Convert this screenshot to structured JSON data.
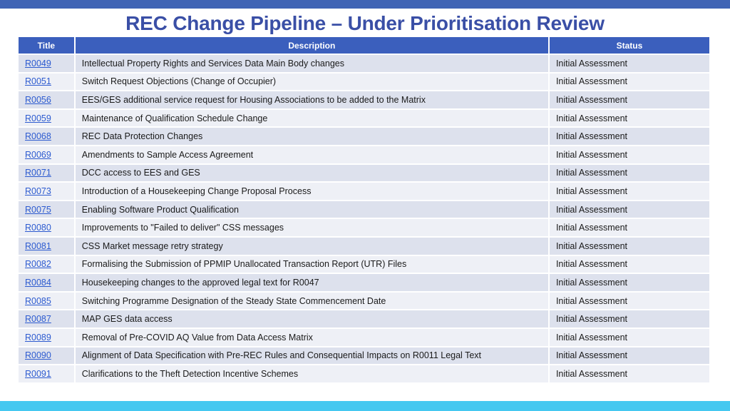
{
  "page": {
    "title": "REC Change Pipeline – Under Prioritisation Review"
  },
  "table": {
    "headers": {
      "title": "Title",
      "description": "Description",
      "status": "Status"
    },
    "rows": [
      {
        "title": "R0049",
        "description": "Intellectual Property Rights and Services Data Main Body changes",
        "status": "Initial Assessment"
      },
      {
        "title": "R0051",
        "description": "Switch Request Objections (Change of Occupier)",
        "status": "Initial Assessment"
      },
      {
        "title": "R0056",
        "description": "EES/GES additional service request for Housing Associations to be added to the Matrix",
        "status": "Initial Assessment"
      },
      {
        "title": "R0059",
        "description": "Maintenance of Qualification Schedule Change",
        "status": "Initial Assessment"
      },
      {
        "title": "R0068",
        "description": "REC Data Protection Changes",
        "status": "Initial Assessment"
      },
      {
        "title": "R0069",
        "description": "Amendments to Sample Access Agreement",
        "status": "Initial Assessment"
      },
      {
        "title": "R0071",
        "description": "DCC access to EES and GES",
        "status": "Initial Assessment"
      },
      {
        "title": "R0073",
        "description": "Introduction of a Housekeeping Change Proposal Process",
        "status": "Initial Assessment"
      },
      {
        "title": "R0075",
        "description": "Enabling Software Product Qualification",
        "status": "Initial Assessment"
      },
      {
        "title": "R0080",
        "description": "Improvements to \"Failed to deliver\" CSS messages",
        "status": "Initial Assessment"
      },
      {
        "title": "R0081",
        "description": "CSS Market message retry strategy",
        "status": "Initial Assessment"
      },
      {
        "title": "R0082",
        "description": "Formalising the Submission of PPMIP Unallocated Transaction Report (UTR) Files",
        "status": "Initial Assessment"
      },
      {
        "title": "R0084",
        "description": "Housekeeping changes to the approved legal text for R0047",
        "status": "Initial Assessment"
      },
      {
        "title": "R0085",
        "description": "Switching Programme Designation of the Steady State Commencement Date",
        "status": "Initial Assessment"
      },
      {
        "title": "R0087",
        "description": "MAP GES data access",
        "status": "Initial Assessment"
      },
      {
        "title": "R0089",
        "description": "Removal of Pre-COVID AQ Value from Data Access Matrix",
        "status": "Initial Assessment"
      },
      {
        "title": "R0090",
        "description": "Alignment of Data Specification with Pre-REC Rules and Consequential Impacts on R0011 Legal Text",
        "status": "Initial Assessment"
      },
      {
        "title": "R0091",
        "description": "Clarifications to the Theft Detection Incentive Schemes",
        "status": "Initial Assessment"
      }
    ]
  },
  "colors": {
    "header_bg": "#3b5fbd",
    "title_text": "#3a4fa6",
    "row_odd": "#dde1ed",
    "row_even": "#eef0f6",
    "link": "#2d5bd0",
    "top_bar": "#3f64b5",
    "bottom_bar": "#45c8f0"
  }
}
